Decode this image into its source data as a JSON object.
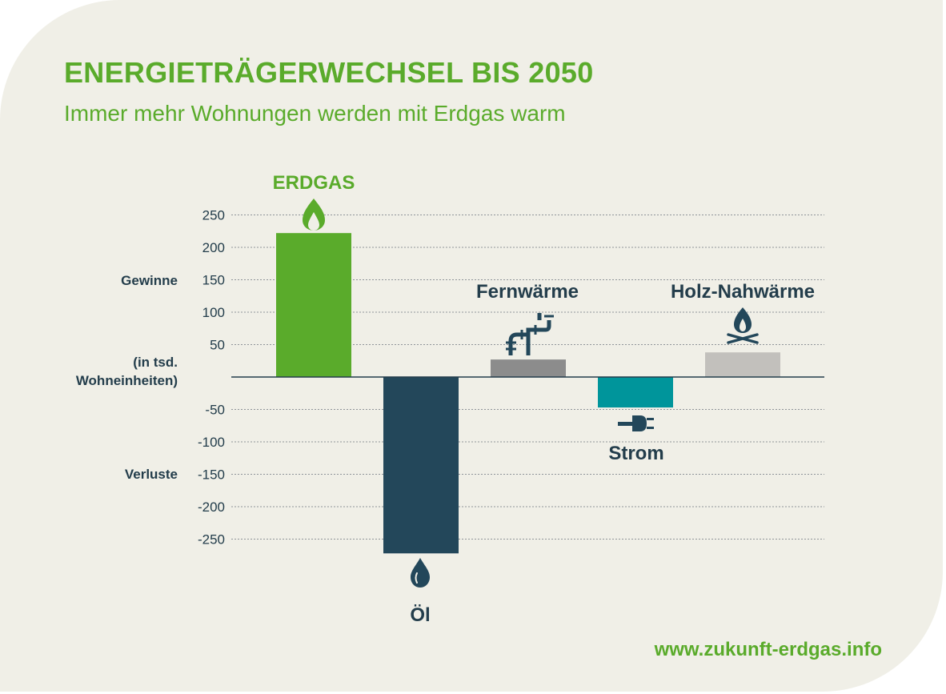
{
  "header": {
    "title": "ENERGIETRÄGERWECHSEL BIS 2050",
    "subtitle": "Immer mehr Wohnungen werden mit Erdgas warm"
  },
  "footer": {
    "url": "www.zukunft-erdgas.info"
  },
  "annotations": {
    "gains": "Gewinne",
    "unit_line1": "(in tsd.",
    "unit_line2": "Wohneinheiten)",
    "losses": "Verluste"
  },
  "colors": {
    "erdgas": "#5aab2b",
    "oel": "#23475a",
    "fernwaerme": "#8c8c8c",
    "strom": "#00959b",
    "holz": "#c2c0bc",
    "text_dark": "#233d4b",
    "accent": "#5aab2b"
  },
  "chart_data": {
    "type": "bar",
    "categories": [
      "ERDGAS",
      "Öl",
      "Fernwärme",
      "Strom",
      "Holz-Nahwärme"
    ],
    "values": [
      222,
      -272,
      27,
      -47,
      38
    ],
    "icons": [
      "flame-icon",
      "oil-drop-icon",
      "pipe-icon",
      "plug-icon",
      "campfire-icon"
    ],
    "yticks": [
      250,
      200,
      150,
      100,
      50,
      -50,
      -100,
      -150,
      -200,
      -250
    ],
    "ylim": [
      -280,
      260
    ],
    "grid": true,
    "title": "",
    "xlabel": "",
    "ylabel": ""
  }
}
